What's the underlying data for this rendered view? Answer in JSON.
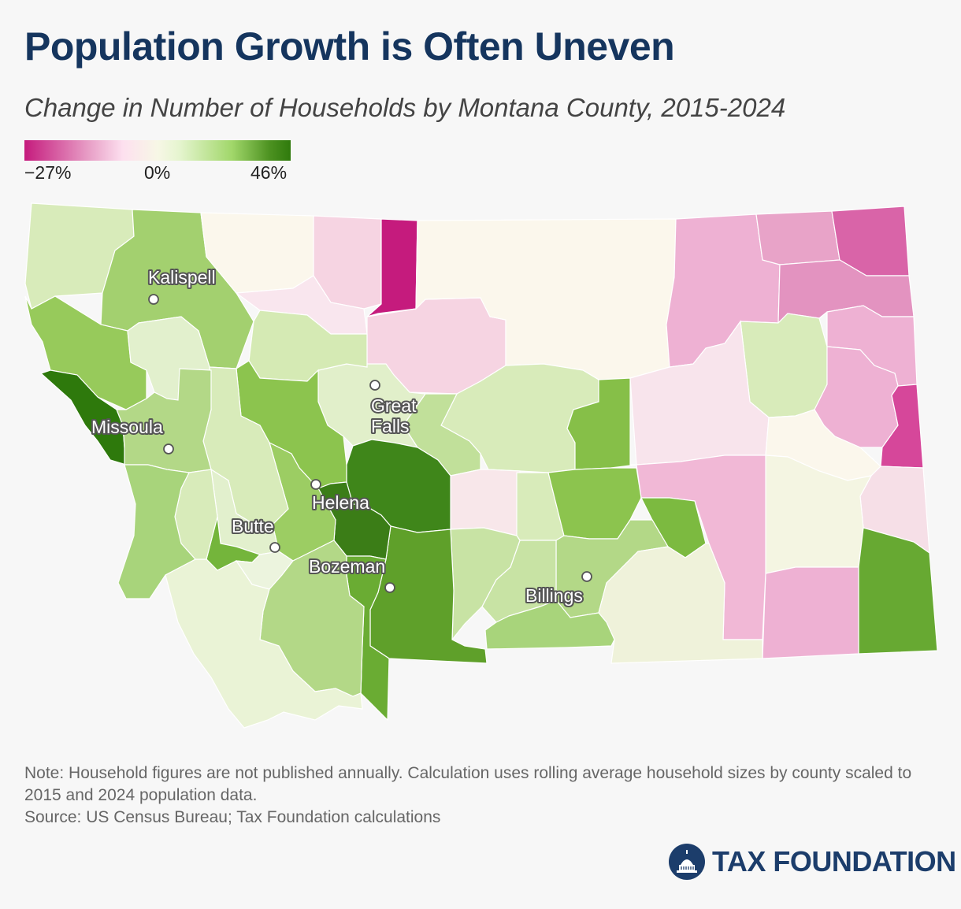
{
  "header": {
    "title": "Population Growth is Often Uneven",
    "subtitle": "Change in Number of Households by Montana County, 2015-2024"
  },
  "legend": {
    "min_label": "−27%",
    "mid_label": "0%",
    "max_label": "46%",
    "min_value": -27,
    "max_value": 46,
    "colors": [
      "#c51b7d",
      "#e9a3c9",
      "#fde0ef",
      "#f7f7e6",
      "#e6f5d0",
      "#a1d76a",
      "#4d9221",
      "#2f7a0c"
    ]
  },
  "cities": [
    {
      "name": "Kalispell"
    },
    {
      "name": "Missoula"
    },
    {
      "name": "Great Falls"
    },
    {
      "name": "Helena"
    },
    {
      "name": "Butte"
    },
    {
      "name": "Bozeman"
    },
    {
      "name": "Billings"
    }
  ],
  "footer": {
    "note": "Note: Household figures are not published annually. Calculation uses rolling average household sizes by county scaled to 2015 and 2024 population data.",
    "source": "Source: US Census Bureau; Tax Foundation calculations",
    "logo_text": "TAX FOUNDATION"
  },
  "colors": {
    "title": "#15355e",
    "logo": "#1c3d6b"
  }
}
